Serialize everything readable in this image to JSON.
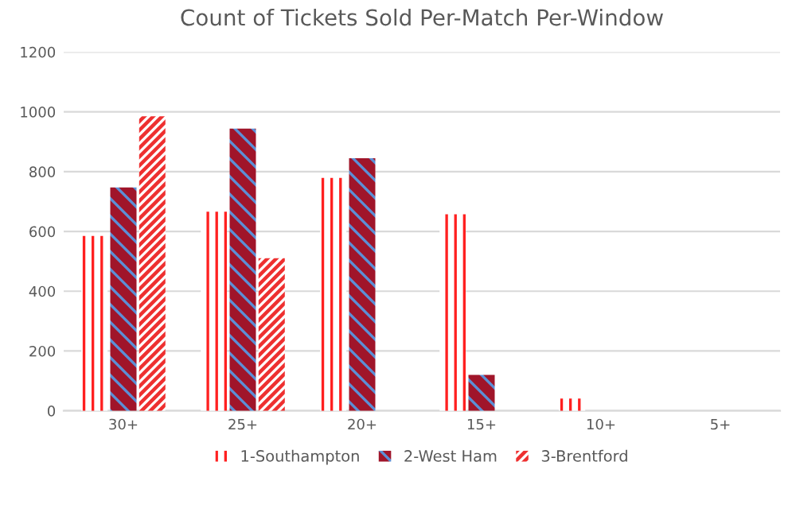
{
  "chart_data": {
    "type": "bar",
    "title": "Count of Tickets Sold Per-Match Per-Window",
    "categories": [
      "30+",
      "25+",
      "20+",
      "15+",
      "10+",
      "5+"
    ],
    "series": [
      {
        "name": "1-Southampton",
        "color": "#ff2020",
        "values": [
          585,
          666,
          779,
          657,
          41,
          null
        ]
      },
      {
        "name": "2-West Ham",
        "color": "#a0152a",
        "values": [
          747,
          944,
          845,
          120,
          null,
          null
        ]
      },
      {
        "name": "3-Brentford",
        "color": "#ee3030",
        "values": [
          985,
          510,
          null,
          null,
          null,
          null
        ]
      }
    ],
    "ylim": [
      0,
      1200
    ],
    "yticks": [
      0,
      200,
      400,
      600,
      800,
      1000,
      1200
    ],
    "grid": "y",
    "legend": "bottom"
  }
}
